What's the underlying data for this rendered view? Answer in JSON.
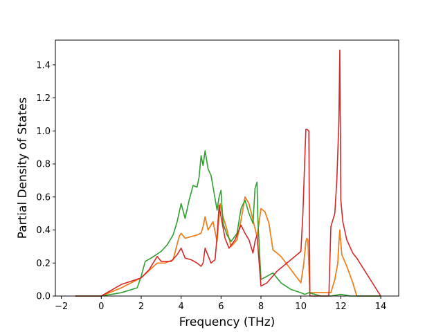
{
  "chart_data": {
    "type": "line",
    "title": "",
    "xlabel": "Frequency (THz)",
    "ylabel": "Partial Density of States",
    "xlim": [
      -2.3,
      14.9
    ],
    "ylim": [
      0,
      1.55
    ],
    "xticks": [
      -2,
      0,
      2,
      4,
      6,
      8,
      10,
      12,
      14
    ],
    "xtick_labels": [
      "−2",
      "0",
      "2",
      "4",
      "6",
      "8",
      "10",
      "12",
      "14"
    ],
    "yticks": [
      0.0,
      0.2,
      0.4,
      0.6,
      0.8,
      1.0,
      1.2,
      1.4
    ],
    "ytick_labels": [
      "0.0",
      "0.2",
      "0.4",
      "0.6",
      "0.8",
      "1.0",
      "1.2",
      "1.4"
    ],
    "grid": false,
    "legend": "none",
    "series": [
      {
        "color": "#1f77b4",
        "x": [
          -1.3,
          0.0,
          1.0,
          2.0,
          2.8,
          3.2,
          3.6,
          3.9,
          4.0,
          4.2,
          4.5,
          4.8,
          5.0,
          5.1,
          5.2,
          5.35,
          5.6,
          5.8,
          5.95,
          6.1,
          6.3,
          6.5,
          6.8,
          7.0,
          7.2,
          7.4,
          7.6,
          7.8,
          7.9,
          8.0,
          8.2,
          8.4,
          8.6,
          8.8,
          9.0,
          9.5,
          10.0,
          10.15,
          10.25,
          10.3,
          10.35,
          10.45,
          11.5,
          11.7,
          11.85,
          11.9,
          11.95,
          12.05,
          12.3,
          12.6,
          12.8,
          13.0,
          14.0
        ],
        "y": [
          0.0,
          0.0,
          0.05,
          0.11,
          0.2,
          0.2,
          0.22,
          0.36,
          0.38,
          0.35,
          0.36,
          0.37,
          0.38,
          0.42,
          0.48,
          0.4,
          0.45,
          0.33,
          0.56,
          0.48,
          0.4,
          0.3,
          0.34,
          0.46,
          0.6,
          0.56,
          0.46,
          0.36,
          0.44,
          0.53,
          0.51,
          0.44,
          0.28,
          0.26,
          0.24,
          0.16,
          0.08,
          0.2,
          0.33,
          0.35,
          0.34,
          0.02,
          0.02,
          0.1,
          0.2,
          0.32,
          0.4,
          0.25,
          0.18,
          0.08,
          0.0,
          0.0,
          0.0
        ]
      },
      {
        "color": "#ff7f0e",
        "x": [
          -1.3,
          0.0,
          1.0,
          2.0,
          2.8,
          3.2,
          3.6,
          3.9,
          4.0,
          4.2,
          4.5,
          4.8,
          5.0,
          5.1,
          5.2,
          5.35,
          5.6,
          5.8,
          5.95,
          6.1,
          6.3,
          6.5,
          6.8,
          7.0,
          7.2,
          7.4,
          7.6,
          7.8,
          7.9,
          8.0,
          8.2,
          8.4,
          8.6,
          8.8,
          9.0,
          9.5,
          10.0,
          10.15,
          10.25,
          10.3,
          10.35,
          10.45,
          11.5,
          11.7,
          11.85,
          11.9,
          11.95,
          12.05,
          12.3,
          12.6,
          12.8,
          13.0,
          14.0
        ],
        "y": [
          0.0,
          0.0,
          0.05,
          0.11,
          0.2,
          0.2,
          0.22,
          0.36,
          0.38,
          0.35,
          0.36,
          0.37,
          0.38,
          0.42,
          0.48,
          0.4,
          0.45,
          0.33,
          0.56,
          0.48,
          0.4,
          0.3,
          0.34,
          0.46,
          0.6,
          0.56,
          0.46,
          0.36,
          0.44,
          0.53,
          0.51,
          0.44,
          0.28,
          0.26,
          0.24,
          0.16,
          0.08,
          0.2,
          0.33,
          0.35,
          0.34,
          0.02,
          0.02,
          0.1,
          0.2,
          0.32,
          0.4,
          0.25,
          0.18,
          0.08,
          0.0,
          0.0,
          0.0
        ]
      },
      {
        "color": "#2ca02c",
        "x": [
          -1.3,
          0.0,
          1.0,
          1.8,
          2.0,
          2.2,
          2.5,
          3.0,
          3.3,
          3.6,
          3.8,
          4.0,
          4.2,
          4.4,
          4.6,
          4.8,
          4.9,
          5.0,
          5.1,
          5.2,
          5.35,
          5.5,
          5.8,
          5.9,
          6.0,
          6.1,
          6.3,
          6.5,
          6.8,
          7.0,
          7.2,
          7.4,
          7.6,
          7.7,
          7.8,
          7.85,
          8.0,
          8.3,
          8.6,
          9.0,
          9.5,
          10.0,
          10.2,
          10.4,
          11.0,
          11.5,
          12.0,
          12.5,
          14.0
        ],
        "y": [
          0.0,
          0.0,
          0.02,
          0.05,
          0.12,
          0.21,
          0.23,
          0.27,
          0.31,
          0.37,
          0.45,
          0.56,
          0.47,
          0.58,
          0.67,
          0.66,
          0.72,
          0.85,
          0.79,
          0.88,
          0.77,
          0.73,
          0.52,
          0.6,
          0.64,
          0.44,
          0.37,
          0.33,
          0.38,
          0.53,
          0.58,
          0.5,
          0.44,
          0.65,
          0.69,
          0.45,
          0.1,
          0.12,
          0.14,
          0.08,
          0.04,
          0.02,
          0.01,
          0.02,
          0.0,
          0.0,
          0.01,
          0.0,
          0.0
        ]
      },
      {
        "color": "#d62728",
        "x": [
          -1.3,
          0.0,
          1.0,
          2.0,
          2.4,
          2.8,
          3.0,
          3.5,
          3.8,
          4.0,
          4.2,
          4.5,
          4.8,
          5.0,
          5.1,
          5.2,
          5.5,
          5.7,
          5.8,
          5.9,
          6.0,
          6.2,
          6.4,
          6.7,
          7.0,
          7.2,
          7.4,
          7.6,
          7.7,
          7.8,
          8.0,
          8.3,
          8.8,
          9.5,
          10.0,
          10.1,
          10.2,
          10.25,
          10.3,
          10.4,
          10.45,
          11.4,
          11.5,
          11.7,
          11.8,
          11.9,
          11.95,
          12.0,
          12.1,
          12.3,
          12.6,
          12.8,
          14.0
        ],
        "y": [
          0.0,
          0.0,
          0.07,
          0.11,
          0.16,
          0.24,
          0.21,
          0.21,
          0.25,
          0.29,
          0.23,
          0.22,
          0.2,
          0.18,
          0.2,
          0.29,
          0.2,
          0.22,
          0.36,
          0.55,
          0.48,
          0.35,
          0.29,
          0.34,
          0.43,
          0.38,
          0.34,
          0.26,
          0.33,
          0.37,
          0.06,
          0.08,
          0.15,
          0.22,
          0.27,
          0.5,
          0.85,
          1.01,
          1.01,
          1.0,
          0.0,
          0.0,
          0.42,
          0.5,
          0.7,
          1.05,
          1.49,
          0.58,
          0.45,
          0.34,
          0.26,
          0.23,
          0.0
        ]
      }
    ]
  }
}
